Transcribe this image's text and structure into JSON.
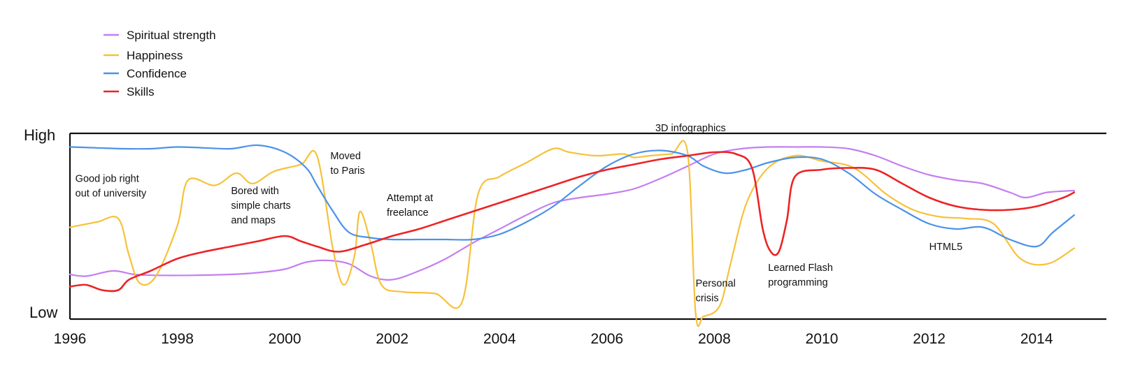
{
  "chart_data": {
    "type": "line",
    "title": "",
    "xlabel": "",
    "ylabel": "",
    "xlim": [
      1996,
      2015.3
    ],
    "ylim": [
      0,
      1
    ],
    "y_level_labels": {
      "high": "High",
      "low": "Low"
    },
    "x_ticks": [
      1996,
      1998,
      2000,
      2002,
      2004,
      2006,
      2008,
      2010,
      2012,
      2014
    ],
    "x_tick_labels": [
      "1996",
      "1998",
      "2000",
      "2002",
      "2004",
      "2006",
      "2008",
      "2010",
      "2012",
      "2014"
    ],
    "legend_position": "top-left",
    "grid": false,
    "series": [
      {
        "name": "Spiritual strength",
        "color": "#c47ff0",
        "x": [
          1996,
          1996.3,
          1996.8,
          1997.2,
          1997.6,
          1998.3,
          1999,
          1999.5,
          2000,
          2000.4,
          2000.8,
          2001.2,
          2001.6,
          2002,
          2002.5,
          2003,
          2003.5,
          2004,
          2004.5,
          2005,
          2005.5,
          2006,
          2006.5,
          2007,
          2007.5,
          2008,
          2008.5,
          2009,
          2009.5,
          2010,
          2010.5,
          2011,
          2011.5,
          2012,
          2012.5,
          2013,
          2013.5,
          2013.8,
          2014.2,
          2014.7
        ],
        "y": [
          0.24,
          0.23,
          0.26,
          0.24,
          0.235,
          0.235,
          0.24,
          0.25,
          0.27,
          0.31,
          0.32,
          0.3,
          0.23,
          0.21,
          0.26,
          0.33,
          0.42,
          0.5,
          0.58,
          0.65,
          0.68,
          0.7,
          0.73,
          0.79,
          0.86,
          0.93,
          0.96,
          0.97,
          0.97,
          0.97,
          0.96,
          0.92,
          0.86,
          0.81,
          0.78,
          0.76,
          0.71,
          0.68,
          0.71,
          0.72
        ]
      },
      {
        "name": "Happiness",
        "color": "#f7c13a",
        "x": [
          1996,
          1996.5,
          1996.9,
          1997.1,
          1997.3,
          1997.6,
          1998,
          1998.2,
          1998.7,
          1999.1,
          1999.4,
          1999.8,
          2000.3,
          2000.6,
          2000.9,
          2001.1,
          2001.3,
          2001.4,
          2001.6,
          2001.8,
          2002.2,
          2002.8,
          2003.3,
          2003.6,
          2004,
          2004.5,
          2005,
          2005.3,
          2005.8,
          2006.3,
          2006.5,
          2006.8,
          2007.2,
          2007.5,
          2007.65,
          2007.8,
          2008.1,
          2008.3,
          2008.6,
          2009,
          2009.5,
          2010,
          2010.6,
          2011.2,
          2011.7,
          2012.2,
          2012.7,
          2013.2,
          2013.7,
          2014.2,
          2014.7
        ],
        "y": [
          0.51,
          0.54,
          0.56,
          0.35,
          0.19,
          0.23,
          0.52,
          0.78,
          0.75,
          0.82,
          0.76,
          0.83,
          0.87,
          0.92,
          0.38,
          0.18,
          0.35,
          0.6,
          0.42,
          0.18,
          0.14,
          0.13,
          0.08,
          0.7,
          0.8,
          0.88,
          0.96,
          0.94,
          0.92,
          0.93,
          0.91,
          0.92,
          0.93,
          0.94,
          0.02,
          0.0,
          0.06,
          0.3,
          0.65,
          0.85,
          0.92,
          0.89,
          0.85,
          0.7,
          0.61,
          0.57,
          0.56,
          0.53,
          0.33,
          0.3,
          0.39
        ]
      },
      {
        "name": "Confidence",
        "color": "#4b92e8",
        "x": [
          1996,
          1996.5,
          1997,
          1997.5,
          1998,
          1998.5,
          1999,
          1999.5,
          2000,
          2000.4,
          2000.6,
          2000.9,
          2001.2,
          2001.6,
          2002,
          2002.5,
          2003,
          2003.5,
          2004,
          2004.5,
          2005,
          2005.5,
          2006,
          2006.5,
          2007,
          2007.5,
          2007.8,
          2008.2,
          2008.6,
          2009,
          2009.5,
          2010,
          2010.5,
          2011,
          2011.5,
          2012,
          2012.5,
          2013,
          2013.5,
          2014,
          2014.3,
          2014.7
        ],
        "y": [
          0.97,
          0.965,
          0.96,
          0.96,
          0.97,
          0.965,
          0.96,
          0.98,
          0.94,
          0.85,
          0.75,
          0.6,
          0.48,
          0.45,
          0.44,
          0.44,
          0.44,
          0.44,
          0.47,
          0.54,
          0.63,
          0.75,
          0.86,
          0.93,
          0.95,
          0.92,
          0.86,
          0.82,
          0.84,
          0.88,
          0.91,
          0.9,
          0.82,
          0.7,
          0.61,
          0.53,
          0.5,
          0.51,
          0.44,
          0.4,
          0.48,
          0.58
        ]
      },
      {
        "name": "Skills",
        "color": "#ed2325",
        "x": [
          1996,
          1996.3,
          1996.6,
          1996.9,
          1997.1,
          1997.5,
          1998,
          1998.5,
          1999,
          1999.5,
          2000,
          2000.3,
          2000.6,
          2001,
          2001.5,
          2002,
          2002.5,
          2003,
          2003.5,
          2004,
          2004.5,
          2005,
          2005.5,
          2006,
          2006.5,
          2007,
          2007.5,
          2008,
          2008.4,
          2008.7,
          2008.9,
          2009.05,
          2009.2,
          2009.35,
          2009.5,
          2010,
          2010.5,
          2011,
          2011.5,
          2012,
          2012.5,
          2013,
          2013.5,
          2014,
          2014.5,
          2014.7
        ],
        "y": [
          0.17,
          0.18,
          0.15,
          0.15,
          0.21,
          0.26,
          0.33,
          0.37,
          0.4,
          0.43,
          0.46,
          0.43,
          0.4,
          0.37,
          0.41,
          0.46,
          0.5,
          0.55,
          0.6,
          0.65,
          0.7,
          0.75,
          0.8,
          0.84,
          0.87,
          0.9,
          0.92,
          0.94,
          0.93,
          0.85,
          0.5,
          0.37,
          0.37,
          0.55,
          0.8,
          0.84,
          0.85,
          0.84,
          0.76,
          0.68,
          0.63,
          0.61,
          0.61,
          0.63,
          0.68,
          0.71
        ]
      }
    ],
    "annotations": [
      {
        "lines": [
          "Good job right",
          "out of university"
        ],
        "x": 1996.1,
        "y": 0.77
      },
      {
        "lines": [
          "Bored with",
          "simple charts",
          "and maps"
        ],
        "x": 1999.0,
        "y": 0.7
      },
      {
        "lines": [
          "Moved",
          "to Paris"
        ],
        "x": 2000.85,
        "y": 0.9
      },
      {
        "lines": [
          "Attempt at",
          "freelance"
        ],
        "x": 2001.9,
        "y": 0.66
      },
      {
        "lines": [
          "3D infographics"
        ],
        "x": 2006.9,
        "y": 1.06
      },
      {
        "lines": [
          "Personal",
          "crisis"
        ],
        "x": 2007.65,
        "y": 0.17
      },
      {
        "lines": [
          "Learned Flash",
          "programming"
        ],
        "x": 2009.0,
        "y": 0.26
      },
      {
        "lines": [
          "HTML5"
        ],
        "x": 2012.0,
        "y": 0.38
      }
    ]
  }
}
